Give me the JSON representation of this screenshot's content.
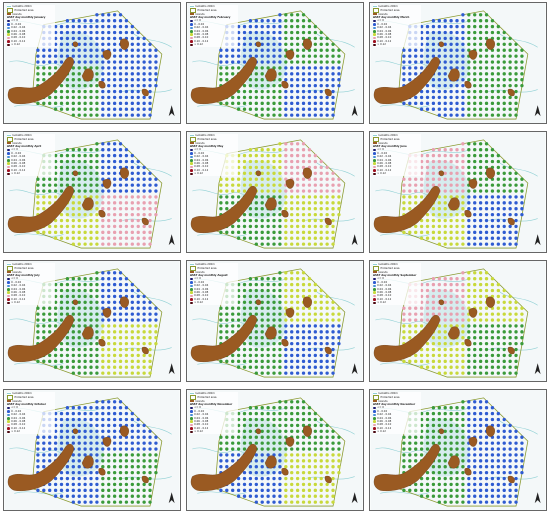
{
  "legend": {
    "isobath": "Isobaths 200m",
    "protected": "Protected area",
    "islands": "Islands",
    "classes": [
      {
        "label": "<= 0",
        "color": "#1a1a6e"
      },
      {
        "label": "0 - 0.02",
        "color": "#2e5bd1"
      },
      {
        "label": "0.02 - 0.04",
        "color": "#4a8fd8"
      },
      {
        "label": "0.04 - 0.06",
        "color": "#3a9a3a"
      },
      {
        "label": "0.06 - 0.08",
        "color": "#c8d93a"
      },
      {
        "label": "0.08 - 0.10",
        "color": "#e8a0b0"
      },
      {
        "label": "0.10 - 0.12",
        "color": "#a01020"
      },
      {
        "label": "> 0.12",
        "color": "#4a0810"
      }
    ]
  },
  "panels": [
    {
      "title": "ΔSST day monthly January",
      "palette": [
        "#2e5bd1",
        "#2e5bd1",
        "#3a9a3a",
        "#2e5bd1"
      ]
    },
    {
      "title": "ΔSST day monthly February",
      "palette": [
        "#2e5bd1",
        "#3a9a3a",
        "#3a9a3a",
        "#2e5bd1"
      ]
    },
    {
      "title": "ΔSST day monthly March",
      "palette": [
        "#2e5bd1",
        "#3a9a3a",
        "#2e5bd1",
        "#3a9a3a"
      ]
    },
    {
      "title": "ΔSST day monthly April",
      "palette": [
        "#3a9a3a",
        "#2e5bd1",
        "#c8d93a",
        "#e8a0b0"
      ]
    },
    {
      "title": "ΔSST day monthly May",
      "palette": [
        "#c8d93a",
        "#e8a0b0",
        "#3a9a3a",
        "#c8d93a"
      ]
    },
    {
      "title": "ΔSST day monthly June",
      "palette": [
        "#e8a0b0",
        "#3a9a3a",
        "#c8d93a",
        "#2e5bd1"
      ]
    },
    {
      "title": "ΔSST day monthly July",
      "palette": [
        "#3a9a3a",
        "#2e5bd1",
        "#3a9a3a",
        "#c8d93a"
      ]
    },
    {
      "title": "ΔSST day monthly August",
      "palette": [
        "#3a9a3a",
        "#c8d93a",
        "#3a9a3a",
        "#2e5bd1"
      ]
    },
    {
      "title": "ΔSST day monthly September",
      "palette": [
        "#e8a0b0",
        "#c8d93a",
        "#c8d93a",
        "#3a9a3a"
      ]
    },
    {
      "title": "ΔSST day monthly October",
      "palette": [
        "#2e5bd1",
        "#2e5bd1",
        "#2e5bd1",
        "#3a9a3a"
      ]
    },
    {
      "title": "ΔSST day monthly November",
      "palette": [
        "#3a9a3a",
        "#3a9a3a",
        "#2e5bd1",
        "#c8d93a"
      ]
    },
    {
      "title": "ΔSST day monthly December",
      "palette": [
        "#3a9a3a",
        "#2e5bd1",
        "#3a9a3a",
        "#2e5bd1"
      ]
    }
  ]
}
